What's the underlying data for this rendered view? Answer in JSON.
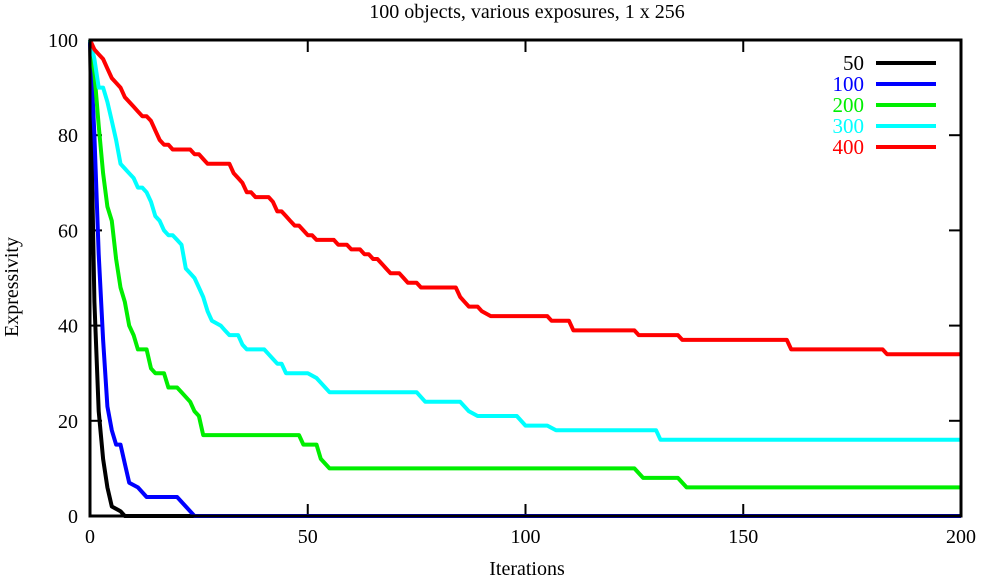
{
  "chart_data": {
    "type": "line",
    "title": "100 objects, various exposures, 1 x 256",
    "xlabel": "Iterations",
    "ylabel": "Expressivity",
    "xlim": [
      0,
      200
    ],
    "ylim": [
      0,
      100
    ],
    "xticks": [
      0,
      50,
      100,
      150,
      200
    ],
    "yticks": [
      0,
      20,
      40,
      60,
      80,
      100
    ],
    "legend_position": "top-right",
    "step_lines": true,
    "series": [
      {
        "name": "50",
        "color": "#000000",
        "points": [
          [
            0,
            100
          ],
          [
            0.5,
            70
          ],
          [
            1,
            45
          ],
          [
            2,
            22
          ],
          [
            3,
            12
          ],
          [
            4,
            6
          ],
          [
            5,
            2
          ],
          [
            7,
            1
          ],
          [
            8,
            0
          ],
          [
            200,
            0
          ]
        ]
      },
      {
        "name": "100",
        "color": "#0000ff",
        "points": [
          [
            0,
            100
          ],
          [
            1,
            80
          ],
          [
            2,
            55
          ],
          [
            3,
            37
          ],
          [
            4,
            23
          ],
          [
            5,
            18
          ],
          [
            6,
            15
          ],
          [
            7,
            15
          ],
          [
            8,
            11
          ],
          [
            9,
            7
          ],
          [
            11,
            6
          ],
          [
            13,
            4
          ],
          [
            20,
            4
          ],
          [
            22,
            2
          ],
          [
            24,
            0
          ],
          [
            200,
            0
          ]
        ]
      },
      {
        "name": "200",
        "color": "#00ee00",
        "points": [
          [
            0,
            100
          ],
          [
            1,
            93
          ],
          [
            2,
            82
          ],
          [
            3,
            72
          ],
          [
            4,
            65
          ],
          [
            5,
            62
          ],
          [
            6,
            54
          ],
          [
            7,
            48
          ],
          [
            8,
            45
          ],
          [
            9,
            40
          ],
          [
            10,
            38
          ],
          [
            11,
            35
          ],
          [
            13,
            35
          ],
          [
            14,
            31
          ],
          [
            15,
            30
          ],
          [
            17,
            30
          ],
          [
            18,
            27
          ],
          [
            20,
            27
          ],
          [
            21,
            26
          ],
          [
            23,
            24
          ],
          [
            24,
            22
          ],
          [
            25,
            21
          ],
          [
            26,
            17
          ],
          [
            48,
            17
          ],
          [
            49,
            15
          ],
          [
            52,
            15
          ],
          [
            53,
            12
          ],
          [
            55,
            10
          ],
          [
            125,
            10
          ],
          [
            127,
            8
          ],
          [
            135,
            8
          ],
          [
            137,
            6
          ],
          [
            200,
            6
          ]
        ]
      },
      {
        "name": "300",
        "color": "#00ffff",
        "points": [
          [
            0,
            100
          ],
          [
            1,
            96
          ],
          [
            2,
            90
          ],
          [
            3,
            90
          ],
          [
            4,
            87
          ],
          [
            5,
            83
          ],
          [
            6,
            79
          ],
          [
            7,
            74
          ],
          [
            8,
            73
          ],
          [
            9,
            72
          ],
          [
            10,
            71
          ],
          [
            11,
            69
          ],
          [
            12,
            69
          ],
          [
            13,
            68
          ],
          [
            14,
            66
          ],
          [
            15,
            63
          ],
          [
            16,
            62
          ],
          [
            17,
            60
          ],
          [
            18,
            59
          ],
          [
            19,
            59
          ],
          [
            20,
            58
          ],
          [
            21,
            57
          ],
          [
            22,
            52
          ],
          [
            23,
            51
          ],
          [
            24,
            50
          ],
          [
            25,
            48
          ],
          [
            26,
            46
          ],
          [
            27,
            43
          ],
          [
            28,
            41
          ],
          [
            30,
            40
          ],
          [
            31,
            39
          ],
          [
            32,
            38
          ],
          [
            34,
            38
          ],
          [
            35,
            36
          ],
          [
            36,
            35
          ],
          [
            40,
            35
          ],
          [
            41,
            34
          ],
          [
            42,
            33
          ],
          [
            43,
            32
          ],
          [
            44,
            32
          ],
          [
            45,
            30
          ],
          [
            50,
            30
          ],
          [
            52,
            29
          ],
          [
            53,
            28
          ],
          [
            55,
            26
          ],
          [
            75,
            26
          ],
          [
            77,
            24
          ],
          [
            85,
            24
          ],
          [
            87,
            22
          ],
          [
            89,
            21
          ],
          [
            98,
            21
          ],
          [
            100,
            19
          ],
          [
            105,
            19
          ],
          [
            107,
            18
          ],
          [
            130,
            18
          ],
          [
            131,
            16
          ],
          [
            200,
            16
          ]
        ]
      },
      {
        "name": "400",
        "color": "#ff0000",
        "points": [
          [
            0,
            100
          ],
          [
            1,
            98
          ],
          [
            2,
            97
          ],
          [
            3,
            96
          ],
          [
            4,
            94
          ],
          [
            5,
            92
          ],
          [
            6,
            91
          ],
          [
            7,
            90
          ],
          [
            8,
            88
          ],
          [
            9,
            87
          ],
          [
            10,
            86
          ],
          [
            11,
            85
          ],
          [
            12,
            84
          ],
          [
            13,
            84
          ],
          [
            14,
            83
          ],
          [
            15,
            81
          ],
          [
            16,
            79
          ],
          [
            17,
            78
          ],
          [
            18,
            78
          ],
          [
            19,
            77
          ],
          [
            23,
            77
          ],
          [
            24,
            76
          ],
          [
            25,
            76
          ],
          [
            26,
            75
          ],
          [
            27,
            74
          ],
          [
            32,
            74
          ],
          [
            33,
            72
          ],
          [
            34,
            71
          ],
          [
            35,
            70
          ],
          [
            36,
            68
          ],
          [
            37,
            68
          ],
          [
            38,
            67
          ],
          [
            41,
            67
          ],
          [
            42,
            66
          ],
          [
            43,
            64
          ],
          [
            44,
            64
          ],
          [
            45,
            63
          ],
          [
            46,
            62
          ],
          [
            47,
            61
          ],
          [
            48,
            61
          ],
          [
            49,
            60
          ],
          [
            50,
            59
          ],
          [
            51,
            59
          ],
          [
            52,
            58
          ],
          [
            56,
            58
          ],
          [
            57,
            57
          ],
          [
            59,
            57
          ],
          [
            60,
            56
          ],
          [
            62,
            56
          ],
          [
            63,
            55
          ],
          [
            64,
            55
          ],
          [
            65,
            54
          ],
          [
            66,
            54
          ],
          [
            67,
            53
          ],
          [
            68,
            52
          ],
          [
            69,
            51
          ],
          [
            71,
            51
          ],
          [
            72,
            50
          ],
          [
            73,
            49
          ],
          [
            75,
            49
          ],
          [
            76,
            48
          ],
          [
            84,
            48
          ],
          [
            85,
            46
          ],
          [
            86,
            45
          ],
          [
            87,
            44
          ],
          [
            89,
            44
          ],
          [
            90,
            43
          ],
          [
            92,
            42
          ],
          [
            97,
            42
          ],
          [
            105,
            42
          ],
          [
            106,
            41
          ],
          [
            110,
            41
          ],
          [
            111,
            39
          ],
          [
            120,
            39
          ],
          [
            125,
            39
          ],
          [
            126,
            38
          ],
          [
            130,
            38
          ],
          [
            135,
            38
          ],
          [
            136,
            37
          ],
          [
            145,
            37
          ],
          [
            150,
            37
          ],
          [
            160,
            37
          ],
          [
            161,
            35
          ],
          [
            182,
            35
          ],
          [
            183,
            34
          ],
          [
            200,
            34
          ]
        ]
      }
    ]
  }
}
